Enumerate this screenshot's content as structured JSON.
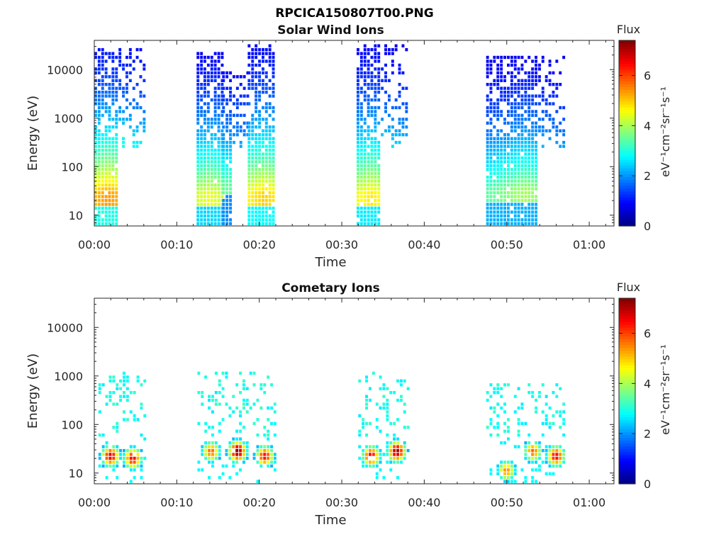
{
  "figure_title": "RPCICA150807T00.PNG",
  "chart_data": [
    {
      "type": "heatmap",
      "title": "Solar Wind Ions",
      "xlabel": "Time",
      "ylabel": "Energy (eV)",
      "x_range_min": [
        0,
        63
      ],
      "x_ticks": [
        "00:00",
        "00:10",
        "00:20",
        "00:30",
        "00:40",
        "00:50",
        "01:00"
      ],
      "y_scale": "log",
      "y_range_eV": [
        6,
        40000
      ],
      "y_ticks": [
        "10",
        "100",
        "1000",
        "10000"
      ],
      "y_tick_values": [
        10,
        100,
        1000,
        10000
      ],
      "colorbar": {
        "label": "Flux",
        "unit": "eV⁻¹cm⁻²sr⁻¹s⁻¹",
        "range": [
          0,
          7.4
        ],
        "ticks": [
          "0",
          "2",
          "4",
          "6"
        ],
        "colormap": "jet"
      },
      "bursts": [
        {
          "t_start": 0.0,
          "t_end": 6.0,
          "core_end": 2.6,
          "peak_t": 1.5,
          "peak_eV": 25,
          "max_eV": 25000,
          "peak_flux": 5.4
        },
        {
          "t_start": 12.4,
          "t_end": 15.5,
          "core_end": 15.5,
          "peak_t": 13.8,
          "peak_eV": 25,
          "max_eV": 22000,
          "peak_flux": 4.5
        },
        {
          "t_start": 15.5,
          "t_end": 18.6,
          "core_end": 16.5,
          "peak_t": 16.0,
          "peak_eV": 40,
          "max_eV": 8000,
          "peak_flux": 3.5
        },
        {
          "t_start": 18.6,
          "t_end": 21.8,
          "core_end": 21.8,
          "peak_t": 20.4,
          "peak_eV": 25,
          "max_eV": 33000,
          "peak_flux": 5.0
        },
        {
          "t_start": 31.8,
          "t_end": 37.8,
          "core_end": 34.5,
          "peak_t": 33.4,
          "peak_eV": 25,
          "max_eV": 32000,
          "peak_flux": 4.8
        },
        {
          "t_start": 47.5,
          "t_end": 57.0,
          "core_end": 53.6,
          "peak_t": 52.0,
          "peak_eV": 30,
          "max_eV": 17000,
          "peak_flux": 4.0
        }
      ]
    },
    {
      "type": "heatmap",
      "title": "Cometary Ions",
      "xlabel": "Time",
      "ylabel": "Energy (eV)",
      "x_range_min": [
        0,
        63
      ],
      "x_ticks": [
        "00:00",
        "00:10",
        "00:20",
        "00:30",
        "00:40",
        "00:50",
        "01:00"
      ],
      "y_scale": "log",
      "y_range_eV": [
        6,
        40000
      ],
      "y_ticks": [
        "10",
        "100",
        "1000",
        "10000"
      ],
      "y_tick_values": [
        10,
        100,
        1000,
        10000
      ],
      "colorbar": {
        "label": "Flux",
        "unit": "eV⁻¹cm⁻²sr⁻¹s⁻¹",
        "range": [
          0,
          7.4
        ],
        "ticks": [
          "0",
          "2",
          "4",
          "6"
        ],
        "colormap": "jet"
      },
      "bursts": [
        {
          "t_start": 0.5,
          "t_end": 6.0,
          "peaks": [
            [
              1.8,
              20,
              6.8
            ],
            [
              4.5,
              18,
              6.6
            ]
          ],
          "max_eV": 1200
        },
        {
          "t_start": 12.5,
          "t_end": 22.0,
          "peaks": [
            [
              14.0,
              25,
              5.8
            ],
            [
              17.2,
              25,
              7.4
            ],
            [
              20.5,
              20,
              6.5
            ]
          ],
          "max_eV": 1200
        },
        {
          "t_start": 32.0,
          "t_end": 38.0,
          "peaks": [
            [
              33.4,
              20,
              6.6
            ],
            [
              36.5,
              25,
              7.2
            ]
          ],
          "max_eV": 1100
        },
        {
          "t_start": 47.5,
          "t_end": 57.0,
          "peaks": [
            [
              49.8,
              10,
              5.5
            ],
            [
              53.0,
              25,
              5.8
            ],
            [
              55.8,
              20,
              6.6
            ]
          ],
          "max_eV": 700
        }
      ]
    }
  ]
}
